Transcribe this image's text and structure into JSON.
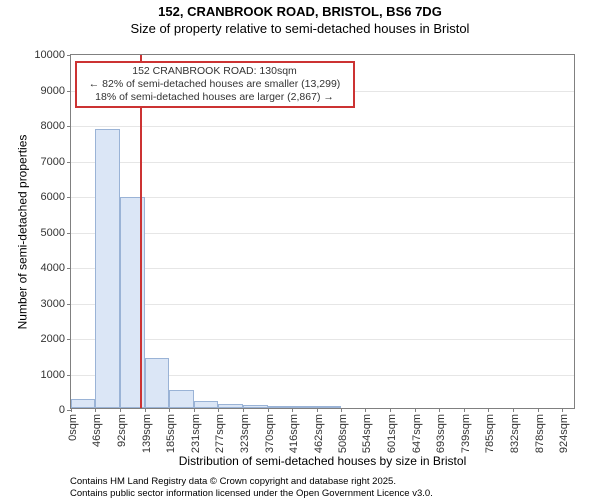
{
  "title_line1": "152, CRANBROOK ROAD, BRISTOL, BS6 7DG",
  "title_line2": "Size of property relative to semi-detached houses in Bristol",
  "yaxis_title": "Number of semi-detached properties",
  "xaxis_title": "Distribution of semi-detached houses by size in Bristol",
  "footer_line1": "Contains HM Land Registry data © Crown copyright and database right 2025.",
  "footer_line2": "Contains public sector information licensed under the Open Government Licence v3.0.",
  "chart": {
    "type": "histogram",
    "background_color": "#ffffff",
    "grid_color": "#e6e6e6",
    "axis_color": "#808080",
    "bar_fill": "#dbe6f6",
    "bar_stroke": "#9ab3d6",
    "annotation_border": "#cc3333",
    "marker_line_color": "#cc3333",
    "text_color": "#333333",
    "ylim": [
      0,
      10000
    ],
    "ytick_step": 1000,
    "xlim": [
      0,
      950
    ],
    "xtick_labels": [
      "0sqm",
      "46sqm",
      "92sqm",
      "139sqm",
      "185sqm",
      "231sqm",
      "277sqm",
      "323sqm",
      "370sqm",
      "416sqm",
      "462sqm",
      "508sqm",
      "554sqm",
      "601sqm",
      "647sqm",
      "693sqm",
      "739sqm",
      "785sqm",
      "832sqm",
      "878sqm",
      "924sqm"
    ],
    "xtick_positions": [
      0,
      46,
      92,
      139,
      185,
      231,
      277,
      323,
      370,
      416,
      462,
      508,
      554,
      601,
      647,
      693,
      739,
      785,
      832,
      878,
      924
    ],
    "label_fontsize": 11,
    "title_fontsize": 13,
    "bars": [
      {
        "x0": 0,
        "x1": 46,
        "value": 250
      },
      {
        "x0": 46,
        "x1": 92,
        "value": 7850
      },
      {
        "x0": 92,
        "x1": 139,
        "value": 5950
      },
      {
        "x0": 139,
        "x1": 185,
        "value": 1400
      },
      {
        "x0": 185,
        "x1": 231,
        "value": 500
      },
      {
        "x0": 231,
        "x1": 277,
        "value": 200
      },
      {
        "x0": 277,
        "x1": 323,
        "value": 100
      },
      {
        "x0": 323,
        "x1": 370,
        "value": 80
      },
      {
        "x0": 370,
        "x1": 416,
        "value": 30
      },
      {
        "x0": 416,
        "x1": 462,
        "value": 15
      },
      {
        "x0": 462,
        "x1": 508,
        "value": 10
      }
    ],
    "marker_x": 130,
    "annotation": {
      "line1": "152 CRANBROOK ROAD: 130sqm",
      "line2": "← 82% of semi-detached houses are smaller (13,299)",
      "line3": "18% of semi-detached houses are larger (2,867) →",
      "x_center": 270,
      "y_top": 250
    }
  }
}
